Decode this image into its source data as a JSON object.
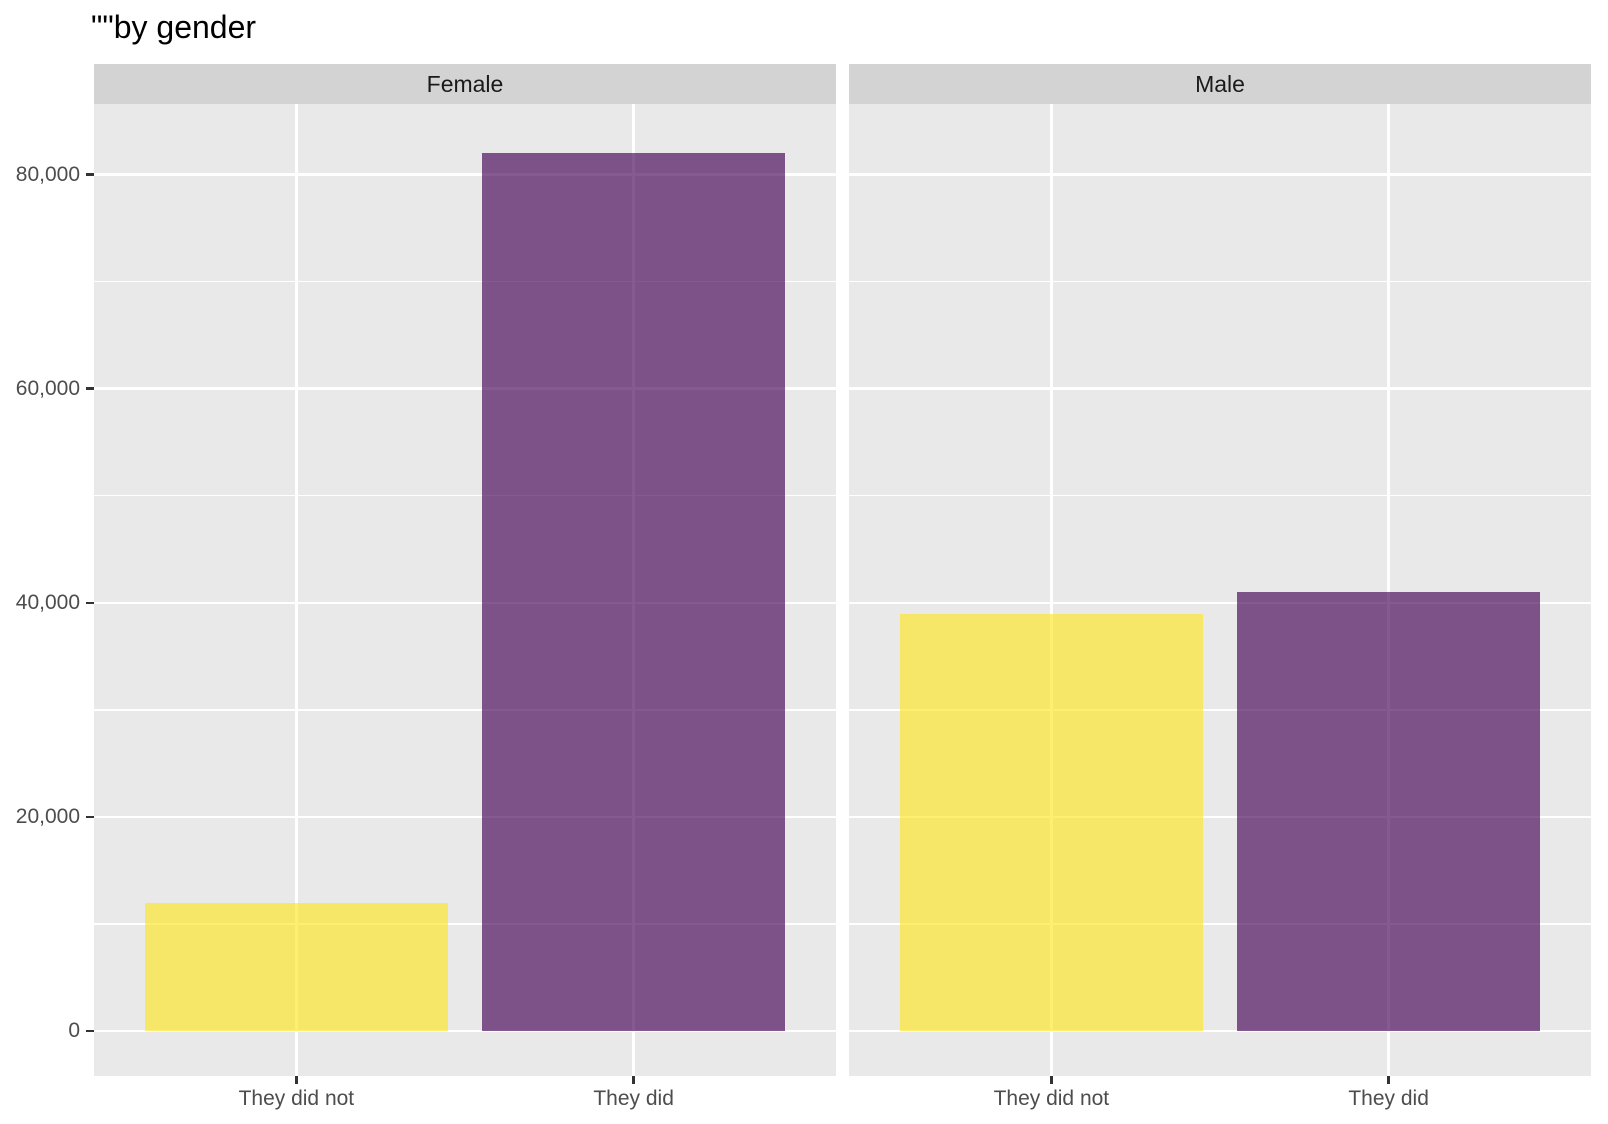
{
  "title": "\"\"by gender",
  "chart_data": {
    "type": "bar",
    "title": "\"\"by gender",
    "facets": [
      {
        "label": "Female",
        "values": [
          12000,
          82000
        ]
      },
      {
        "label": "Male",
        "values": [
          39000,
          41000
        ]
      }
    ],
    "categories": [
      "They did not",
      "They did"
    ],
    "xlabel": "",
    "ylabel": "",
    "y_ticks": [
      0,
      20000,
      40000,
      60000,
      80000
    ],
    "y_tick_labels": [
      "0",
      "20,000",
      "40,000",
      "60,000",
      "80,000"
    ],
    "y_minor_ticks": [
      10000,
      30000,
      50000,
      70000
    ],
    "ylim": [
      0,
      86600
    ],
    "grid": "on",
    "legend": "none",
    "bar_colors": [
      "#FDE725",
      "#440154"
    ],
    "bar_alpha": 0.65,
    "colors": {
      "page_bg": "#FFFFFF",
      "panel_bg": "#E9E9E9",
      "strip_bg": "#D3D3D3",
      "gridline": "#FFFFFF",
      "axis_text": "#4D4D4D",
      "strip_text": "#1A1A1A",
      "title_text": "#000000",
      "tick_mark": "#333333"
    }
  }
}
